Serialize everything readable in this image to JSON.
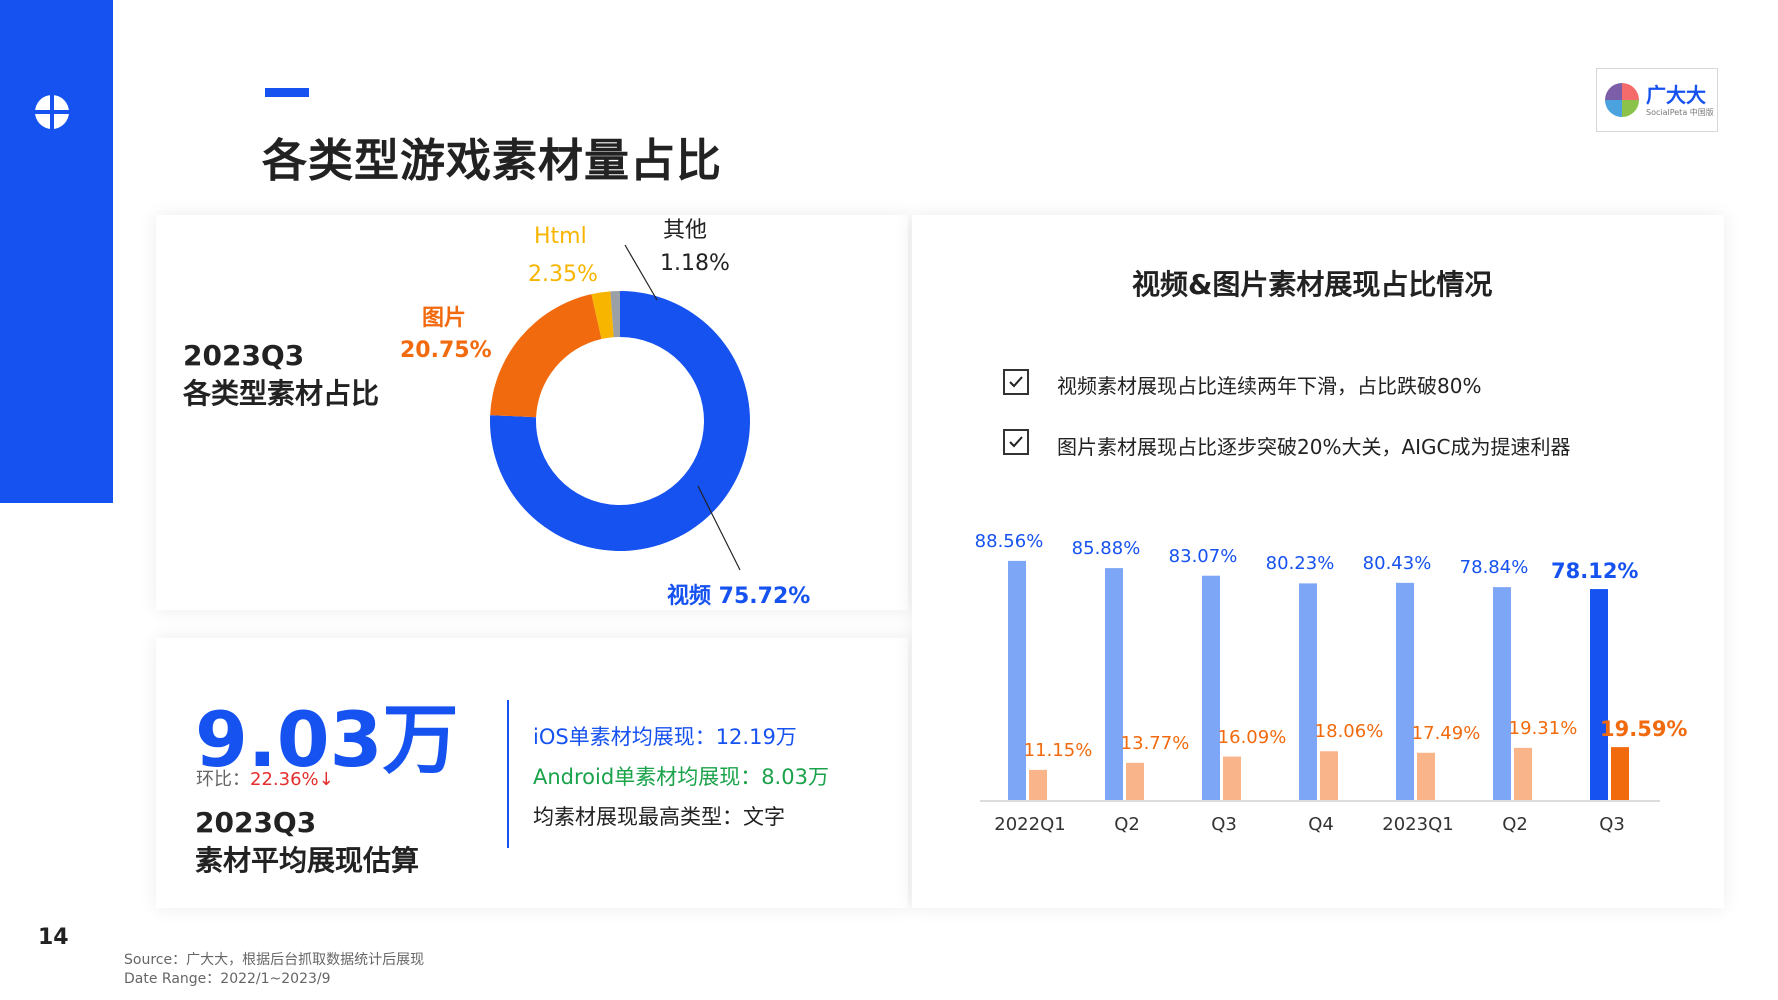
{
  "page": {
    "title": "各类型游戏素材量占比",
    "page_number": "14",
    "source_line1": "Source：广大大，根据后台抓取数据统计后展现",
    "source_line2": "Date Range：2022/1~2023/9"
  },
  "brand": {
    "name": "广大大",
    "sub": "SocialPeta 中国版"
  },
  "donut_section": {
    "label_line1": "2023Q3",
    "label_line2": "各类型素材占比"
  },
  "avg_section": {
    "big_value": "9.03万",
    "hb_label": "环比：",
    "hb_value": "22.36%↓",
    "label_line1": "2023Q3",
    "label_line2": "素材平均展现估算",
    "stat1": "iOS单素材均展现：12.19万",
    "stat2": "Android单素材均展现：8.03万",
    "stat3": "均素材展现最高类型：文字",
    "stat1_color": "#1652f0",
    "stat2_color": "#1aa34a"
  },
  "bar_section": {
    "title": "视频&图片素材展现占比情况",
    "bullet1": "视频素材展现占比连续两年下滑，占比跌破80%",
    "bullet2": "图片素材展现占比逐步突破20%大关，AIGC成为提速利器"
  },
  "colors": {
    "video": "#1652f0",
    "video_light": "#7da6f7",
    "image": "#f26a0e",
    "image_light": "#f9b48a",
    "html": "#f7b500",
    "other": "#9aa0a6"
  },
  "chart_data": [
    {
      "type": "pie",
      "categories": [
        "视频",
        "图片",
        "Html",
        "其他"
      ],
      "values": [
        75.72,
        20.75,
        2.35,
        1.18
      ],
      "labels": [
        "视频 75.72%",
        "20.75%",
        "2.35%",
        "1.18%"
      ]
    },
    {
      "type": "bar",
      "categories": [
        "2022Q1",
        "Q2",
        "Q3",
        "Q4",
        "2023Q1",
        "Q2",
        "Q3"
      ],
      "series": [
        {
          "values": [
            88.56,
            85.88,
            83.07,
            80.23,
            80.43,
            78.84,
            78.12
          ],
          "labels": [
            "88.56%",
            "85.88%",
            "83.07%",
            "80.23%",
            "80.43%",
            "78.84%",
            "78.12%"
          ]
        },
        {
          "values": [
            11.15,
            13.77,
            16.09,
            18.06,
            17.49,
            19.31,
            19.59
          ],
          "labels": [
            "11.15%",
            "13.77%",
            "16.09%",
            "18.06%",
            "17.49%",
            "19.31%",
            "19.59%"
          ]
        }
      ],
      "ylim": [
        0,
        100
      ]
    }
  ]
}
